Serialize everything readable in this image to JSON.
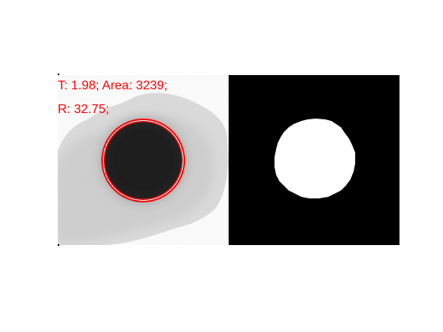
{
  "figure": {
    "annotation": {
      "line1": "T: 1.98; Area: 3239;",
      "line2": "R: 32.75;",
      "color": "#ff0000"
    },
    "left_panel": {
      "kind": "grayscale-image",
      "circle_color": "#ff0000"
    },
    "right_panel": {
      "kind": "binary-mask",
      "foreground": "#ffffff",
      "background": "#000000"
    }
  }
}
